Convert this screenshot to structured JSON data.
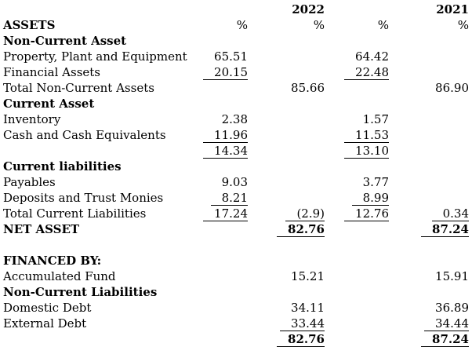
{
  "document": {
    "kind": "common-size financial statement (percentages)",
    "unit_symbol": "%",
    "years": [
      "2022",
      "2021"
    ],
    "columns": [
      "label",
      "2022-detail",
      "2022-total",
      "2021-detail",
      "2021-total"
    ]
  },
  "table": {
    "rows": [
      {
        "label": "",
        "cells": [
          {
            "col": 2,
            "v": "2022",
            "b": 1
          },
          {
            "col": 4,
            "v": "2021",
            "b": 1
          }
        ]
      },
      {
        "label": "ASSETS",
        "b": 1,
        "cells": [
          {
            "col": 1,
            "v": "%"
          },
          {
            "col": 2,
            "v": "%"
          },
          {
            "col": 3,
            "v": "%"
          },
          {
            "col": 4,
            "v": "%"
          }
        ]
      },
      {
        "label": "Non-Current Asset",
        "b": 1,
        "cells": []
      },
      {
        "label": "Property, Plant and Equipment",
        "cells": [
          {
            "col": 1,
            "v": "65.51"
          },
          {
            "col": 3,
            "v": "64.42"
          }
        ]
      },
      {
        "label": "Financial Assets",
        "cells": [
          {
            "col": 1,
            "v": "20.15",
            "u": 1
          },
          {
            "col": 3,
            "v": "22.48",
            "u": 1
          }
        ]
      },
      {
        "label": "Total Non-Current Assets",
        "cells": [
          {
            "col": 2,
            "v": "85.66"
          },
          {
            "col": 4,
            "v": "86.90"
          }
        ]
      },
      {
        "label": "Current Asset",
        "b": 1,
        "cells": []
      },
      {
        "label": "Inventory",
        "cells": [
          {
            "col": 1,
            "v": "2.38"
          },
          {
            "col": 3,
            "v": "1.57"
          }
        ]
      },
      {
        "label": "Cash and Cash Equivalents",
        "cells": [
          {
            "col": 1,
            "v": "11.96",
            "u": 1
          },
          {
            "col": 3,
            "v": "11.53",
            "u": 1
          }
        ]
      },
      {
        "label": "",
        "cells": [
          {
            "col": 1,
            "v": "14.34",
            "u": 1
          },
          {
            "col": 3,
            "v": "13.10",
            "u": 1
          }
        ]
      },
      {
        "label": "Current liabilities",
        "b": 1,
        "cells": []
      },
      {
        "label": "Payables",
        "cells": [
          {
            "col": 1,
            "v": "9.03"
          },
          {
            "col": 3,
            "v": "3.77"
          }
        ]
      },
      {
        "label": "Deposits and Trust Monies",
        "cells": [
          {
            "col": 1,
            "v": "8.21",
            "u": 1
          },
          {
            "col": 3,
            "v": "8.99",
            "u": 1
          }
        ]
      },
      {
        "label": "Total Current Liabilities",
        "cells": [
          {
            "col": 1,
            "v": "17.24",
            "u": 1
          },
          {
            "col": 2,
            "v": "(2.9)",
            "u": 1
          },
          {
            "col": 3,
            "v": "12.76",
            "u": 1
          },
          {
            "col": 4,
            "v": "0.34",
            "u": 1
          }
        ]
      },
      {
        "label": "NET ASSET",
        "b": 1,
        "cells": [
          {
            "col": 2,
            "v": "82.76",
            "u": 1,
            "b": 1
          },
          {
            "col": 4,
            "v": "87.24",
            "u": 1,
            "b": 1
          }
        ]
      },
      {
        "label": "",
        "cells": []
      },
      {
        "label": "FINANCED BY:",
        "b": 1,
        "cells": []
      },
      {
        "label": "Accumulated Fund",
        "cells": [
          {
            "col": 2,
            "v": "15.21"
          },
          {
            "col": 4,
            "v": "15.91"
          }
        ]
      },
      {
        "label": "Non-Current Liabilities",
        "b": 1,
        "cells": []
      },
      {
        "label": "Domestic Debt",
        "cells": [
          {
            "col": 2,
            "v": "34.11"
          },
          {
            "col": 4,
            "v": "36.89"
          }
        ]
      },
      {
        "label": "External Debt",
        "cells": [
          {
            "col": 2,
            "v": "33.44",
            "u": 1
          },
          {
            "col": 4,
            "v": "34.44",
            "u": 1
          }
        ]
      },
      {
        "label": "",
        "cells": [
          {
            "col": 2,
            "v": "82.76",
            "u": 1,
            "b": 1
          },
          {
            "col": 4,
            "v": "87.24",
            "u": 1,
            "b": 1
          }
        ]
      }
    ]
  }
}
